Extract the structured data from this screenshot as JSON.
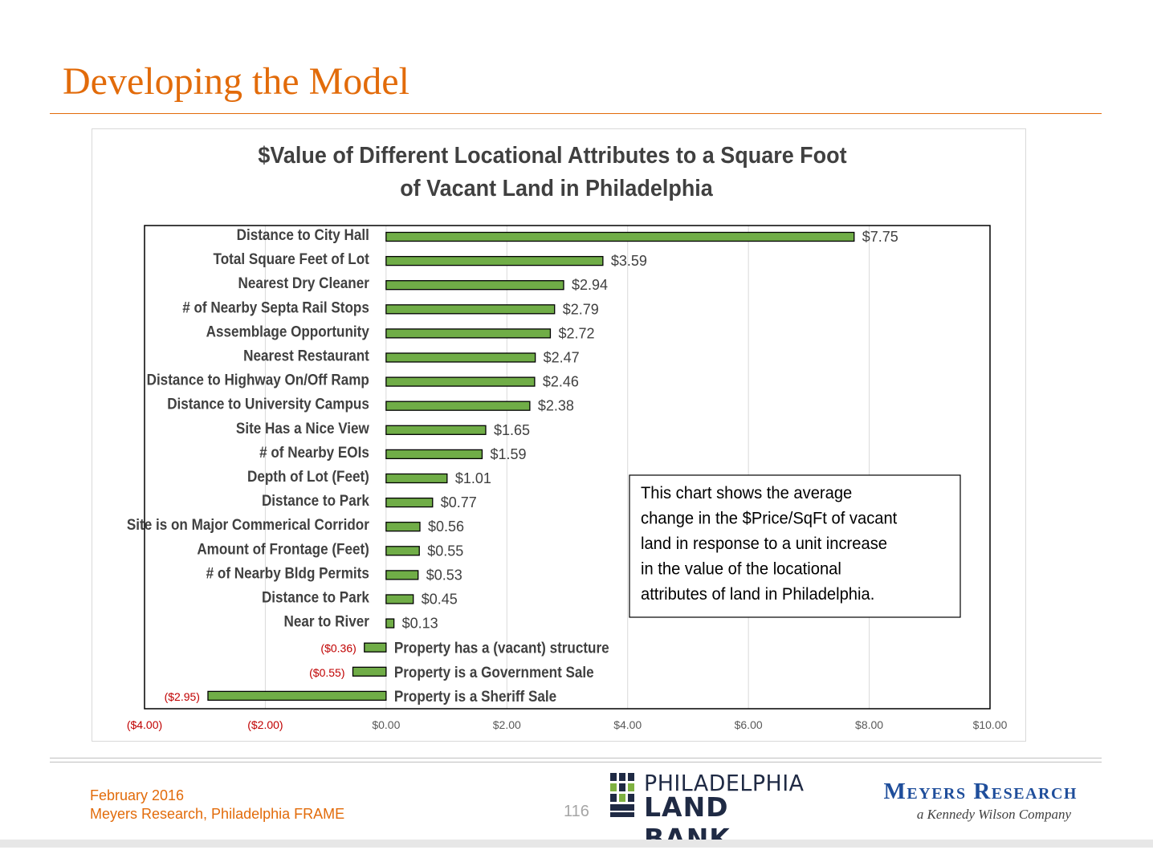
{
  "slide": {
    "title": "Developing the Model",
    "footer_date": "February 2016",
    "footer_source": "Meyers Research, Philadelphia FRAME",
    "page_number": "116"
  },
  "logos": {
    "land_bank_line1": "PHILADELPHIA",
    "land_bank_line2": "LAND BANK",
    "meyers_name": "Meyers Research",
    "meyers_tagline": "a Kennedy Wilson Company"
  },
  "chart_data": {
    "type": "bar",
    "orientation": "horizontal",
    "title_line1": "$Value of Different Locational Attributes to a Square Foot",
    "title_line2": "of Vacant Land in Philadelphia",
    "xlim": [
      -4,
      10
    ],
    "x_ticks": [
      "($4.00)",
      "($2.00)",
      "$0.00",
      "$2.00",
      "$4.00",
      "$6.00",
      "$8.00",
      "$10.00"
    ],
    "x_tick_values": [
      -4,
      -2,
      0,
      2,
      4,
      6,
      8,
      10
    ],
    "grid": "vertical",
    "categories": [
      "Distance to City Hall",
      "Total Square Feet of Lot",
      "Nearest Dry Cleaner",
      "# of Nearby Septa Rail Stops",
      "Assemblage Opportunity",
      "Nearest Restaurant",
      "Distance to Highway On/Off Ramp",
      "Distance to University Campus",
      "Site Has a Nice View",
      "# of Nearby EOIs",
      "Depth of Lot (Feet)",
      "Distance to Park",
      "Site is on Major Commerical Corridor",
      "Amount of Frontage (Feet)",
      "# of Nearby Bldg Permits",
      "Distance to Park",
      "Near to River",
      "Property has a (vacant) structure",
      "Property is a Government Sale",
      "Property is a Sheriff Sale"
    ],
    "values": [
      7.75,
      3.59,
      2.94,
      2.79,
      2.72,
      2.47,
      2.46,
      2.38,
      1.65,
      1.59,
      1.01,
      0.77,
      0.56,
      0.55,
      0.53,
      0.45,
      0.13,
      -0.36,
      -0.55,
      -2.95
    ],
    "data_labels": [
      "$7.75",
      "$3.59",
      "$2.94",
      "$2.79",
      "$2.72",
      "$2.47",
      "$2.46",
      "$2.38",
      "$1.65",
      "$1.59",
      "$1.01",
      "$0.77",
      "$0.56",
      "$0.55",
      "$0.53",
      "$0.45",
      "$0.13",
      "($0.36)",
      "($0.55)",
      "($2.95)"
    ],
    "annotation": [
      "This chart shows the average",
      "change in the $Price/SqFt of vacant",
      "land in response to a unit increase",
      "in the value of the locational",
      "attributes of land in Philadelphia."
    ],
    "colors": {
      "bar_fill": "#70ad47",
      "bar_stroke": "#000000",
      "negative_label": "#c00000",
      "title": "#404040",
      "category_label": "#404040"
    }
  }
}
